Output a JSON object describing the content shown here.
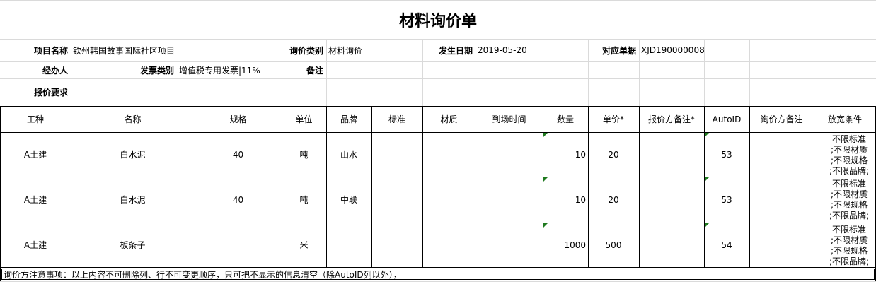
{
  "title": "材料询价单",
  "info": {
    "project_label": "项目名称",
    "project": "钦州韩国故事国际社区项目",
    "category_label": "询价类别",
    "category": "材料询价",
    "date_label": "发生日期",
    "date": "2019-05-20",
    "doc_label": "对应单据",
    "doc": "XJD190000008",
    "handler_label": "经办人",
    "invoice_label": "发票类别",
    "invoice": "增值税专用发票|11%",
    "remark_label": "备注",
    "quote_req_label": "报价要求"
  },
  "table": {
    "headers": [
      "工种",
      "名称",
      "规格",
      "单位",
      "品牌",
      "标准",
      "材质",
      "到场时间",
      "数量",
      "单价*",
      "报价方备注*",
      "AutoID",
      "询价方备注",
      "放宽条件"
    ],
    "rows": [
      {
        "trade": "A土建",
        "name": "白水泥",
        "spec": 40,
        "unit": "吨",
        "brand": "山水",
        "qty": 10,
        "price": 20,
        "auto_id": 53,
        "relax": [
          "不限标准",
          ";不限材质",
          ";不限规格",
          ";不限品牌;"
        ]
      },
      {
        "trade": "A土建",
        "name": "白水泥",
        "spec": 40,
        "unit": "吨",
        "brand": "中联",
        "qty": 10,
        "price": 20,
        "auto_id": 53,
        "relax": [
          "不限标准",
          ";不限材质",
          ";不限规格",
          ";不限品牌;"
        ]
      },
      {
        "trade": "A土建",
        "name": "板条子",
        "unit": "米",
        "qty": 1000,
        "price": 500,
        "auto_id": 54,
        "relax": [
          "不限标准",
          ";不限材质",
          ";不限规格",
          ";不限品牌;"
        ]
      }
    ]
  },
  "note": "询价方注意事项：以上内容不可删除列、行不可变更顺序，只可把不显示的信息清空（除AutoID列以外），"
}
